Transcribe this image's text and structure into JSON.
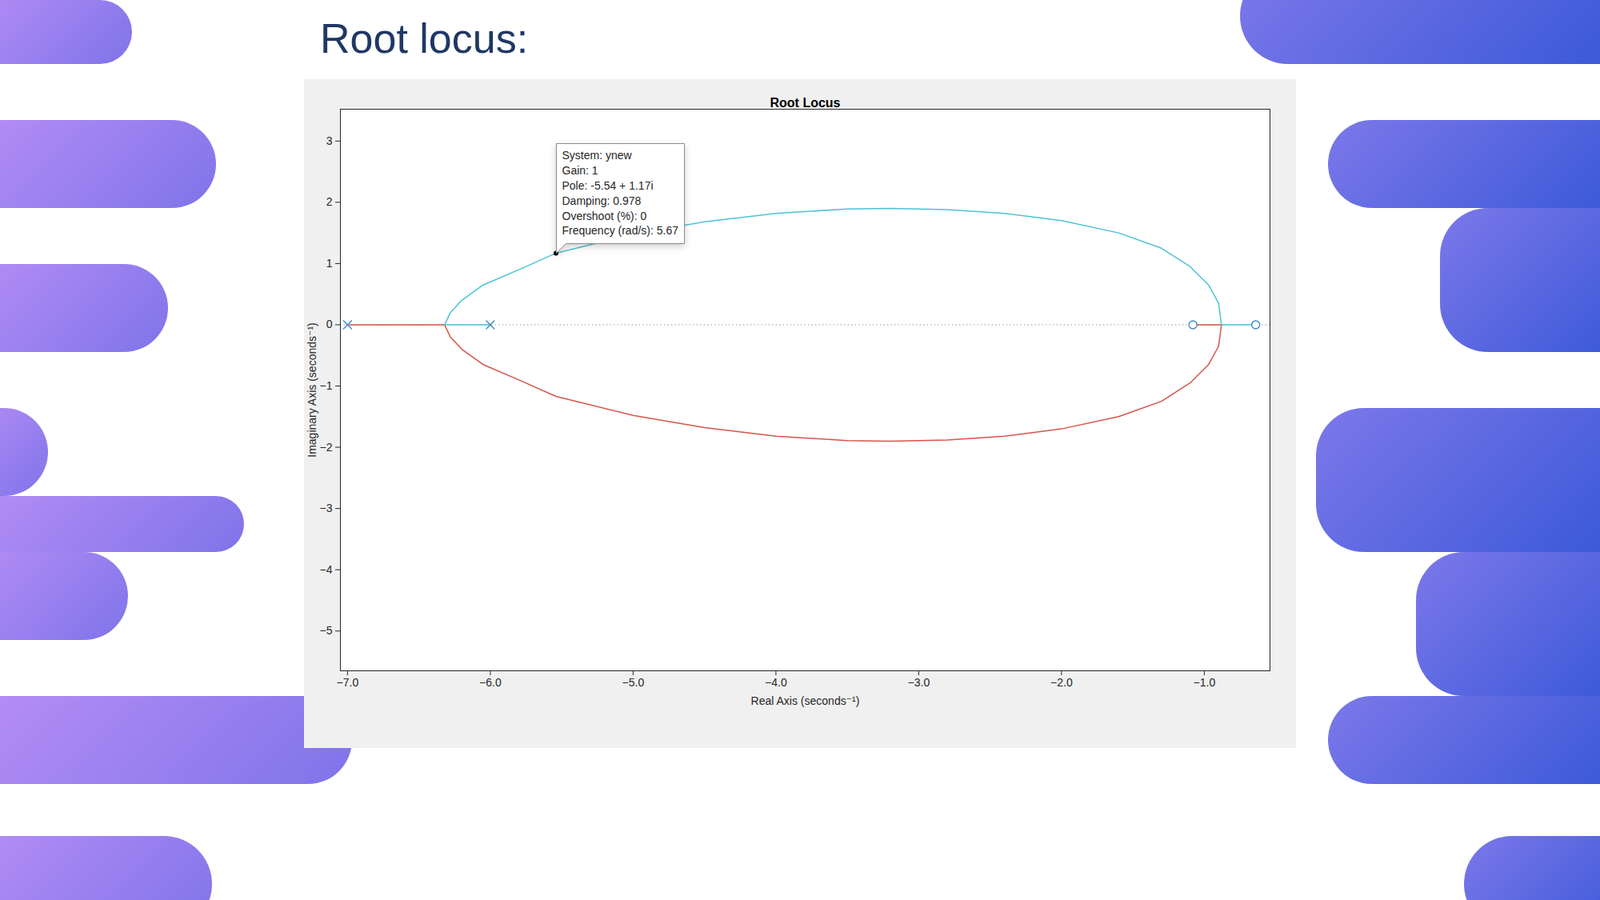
{
  "slide_title": "Root locus:",
  "chart_data": {
    "type": "line",
    "title": "Root Locus",
    "x_label": "Real Axis (seconds⁻¹)",
    "y_label": "Imaginary Axis (seconds⁻¹)",
    "xlim": [
      -7.05,
      -0.54
    ],
    "ylim": [
      -5.65,
      3.52
    ],
    "xticks": [
      -7,
      -6,
      -5,
      -4,
      -3,
      -2,
      -1
    ],
    "yticks": [
      -5,
      -4,
      -3,
      -2,
      -1,
      0,
      1,
      2,
      3
    ],
    "grid": false,
    "series": [
      {
        "type": "line",
        "color": "#d9534a",
        "x": [
          -7,
          -6.32,
          -6.28,
          -6.2,
          -6.05,
          -5.8,
          -5.54,
          -5.0,
          -4.5,
          -4.0,
          -3.5,
          -3.2,
          -2.8,
          -2.4,
          -2.0,
          -1.6,
          -1.3,
          -1.1,
          -0.97,
          -0.9,
          -0.88,
          -1.08
        ],
        "y": [
          0,
          0,
          -0.2,
          -0.4,
          -0.65,
          -0.9,
          -1.17,
          -1.48,
          -1.68,
          -1.82,
          -1.89,
          -1.9,
          -1.88,
          -1.82,
          -1.7,
          -1.5,
          -1.25,
          -0.95,
          -0.65,
          -0.35,
          0,
          0
        ]
      },
      {
        "type": "line",
        "color": "#4cc3d3",
        "x": [
          -6,
          -6.32,
          -6.28,
          -6.2,
          -6.05,
          -5.8,
          -5.54,
          -5.0,
          -4.5,
          -4.0,
          -3.5,
          -3.2,
          -2.8,
          -2.4,
          -2.0,
          -1.6,
          -1.3,
          -1.1,
          -0.97,
          -0.9,
          -0.88,
          -0.64
        ],
        "y": [
          0,
          0,
          0.2,
          0.4,
          0.65,
          0.9,
          1.17,
          1.48,
          1.68,
          1.82,
          1.89,
          1.9,
          1.88,
          1.82,
          1.7,
          1.5,
          1.25,
          0.95,
          0.65,
          0.35,
          0,
          0
        ]
      },
      {
        "type": "scatter",
        "marker": "x",
        "color": "#3a8fc4",
        "x": [
          -7,
          -6
        ],
        "y": [
          0,
          0
        ]
      },
      {
        "type": "scatter",
        "marker": "o",
        "color": "#3a8fc4",
        "x": [
          -1.08,
          -0.64
        ],
        "y": [
          0,
          0
        ]
      }
    ],
    "annotations": [
      {
        "x": -5.54,
        "y": 1.17,
        "lines": [
          "System: ynew",
          "Gain: 1",
          "Pole: -5.54 + 1.17i",
          "Damping: 0.978",
          "Overshoot (%): 0",
          "Frequency (rad/s): 5.67"
        ]
      }
    ]
  }
}
